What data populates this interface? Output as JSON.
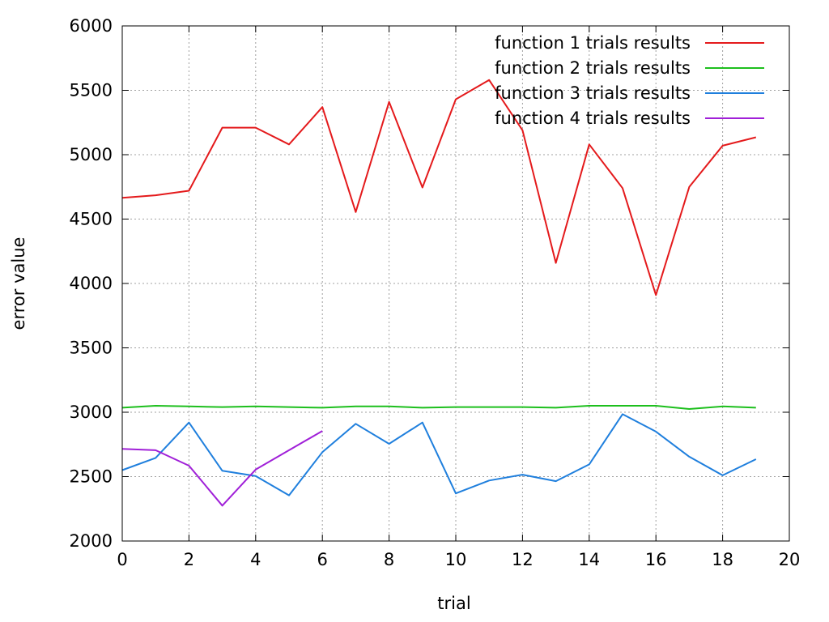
{
  "chart_data": {
    "type": "line",
    "title": "",
    "xlabel": "trial",
    "ylabel": "error value",
    "xlim": [
      0,
      20
    ],
    "ylim": [
      2000,
      6000
    ],
    "xticks": [
      "0",
      "2",
      "4",
      "6",
      "8",
      "10",
      "12",
      "14",
      "16",
      "18",
      "20"
    ],
    "yticks": [
      "2000",
      "2500",
      "3000",
      "3500",
      "4000",
      "4500",
      "5000",
      "5500",
      "6000"
    ],
    "grid": true,
    "legend_position": "top-right",
    "series": [
      {
        "name": "function 1 trials results",
        "color": "#e41a1c",
        "x": [
          0,
          1,
          2,
          3,
          4,
          5,
          6,
          7,
          8,
          9,
          10,
          11,
          12,
          13,
          14,
          15,
          16,
          17,
          18,
          19
        ],
        "values": [
          4665,
          4685,
          4720,
          5210,
          5210,
          5080,
          5370,
          4555,
          5410,
          4745,
          5430,
          5580,
          5190,
          4160,
          5080,
          4740,
          3910,
          4750,
          5070,
          5135
        ]
      },
      {
        "name": "function 2 trials results",
        "color": "#1dbf1d",
        "x": [
          0,
          1,
          2,
          3,
          4,
          5,
          6,
          7,
          8,
          9,
          10,
          11,
          12,
          13,
          14,
          15,
          16,
          17,
          18,
          19
        ],
        "values": [
          3035,
          3050,
          3045,
          3040,
          3045,
          3040,
          3035,
          3045,
          3045,
          3035,
          3040,
          3040,
          3040,
          3035,
          3050,
          3050,
          3050,
          3025,
          3045,
          3035
        ]
      },
      {
        "name": "function 3 trials results",
        "color": "#1f7fdd",
        "x": [
          0,
          1,
          2,
          3,
          4,
          5,
          6,
          7,
          8,
          9,
          10,
          11,
          12,
          13,
          14,
          15,
          16,
          17,
          18,
          19
        ],
        "values": [
          2550,
          2645,
          2920,
          2545,
          2505,
          2355,
          2690,
          2910,
          2755,
          2920,
          2370,
          2470,
          2515,
          2465,
          2595,
          2985,
          2850,
          2655,
          2510,
          2635
        ]
      },
      {
        "name": "function 4 trials results",
        "color": "#a020d8",
        "x": [
          0,
          1,
          2,
          3,
          4,
          5,
          6
        ],
        "values": [
          2715,
          2705,
          2585,
          2275,
          2555,
          2705,
          2855
        ]
      }
    ]
  }
}
